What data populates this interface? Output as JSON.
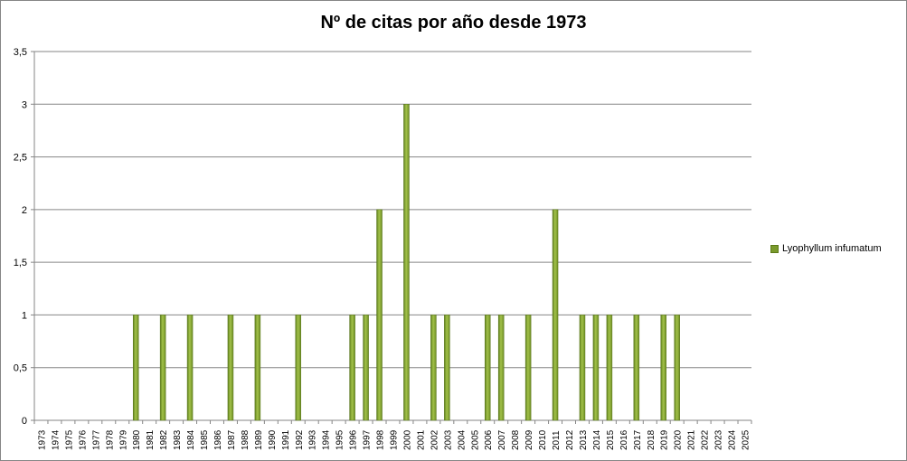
{
  "chart_data": {
    "type": "bar",
    "title": "Nº de citas por año desde 1973",
    "xlabel": "",
    "ylabel": "",
    "ylim": [
      0,
      3.5
    ],
    "yticks": [
      "0",
      "0,5",
      "1",
      "1,5",
      "2",
      "2,5",
      "3",
      "3,5"
    ],
    "grid": true,
    "legend_position": "right",
    "categories": [
      "1973",
      "1974",
      "1975",
      "1976",
      "1977",
      "1978",
      "1979",
      "1980",
      "1981",
      "1982",
      "1983",
      "1984",
      "1985",
      "1986",
      "1987",
      "1988",
      "1989",
      "1990",
      "1991",
      "1992",
      "1993",
      "1994",
      "1995",
      "1996",
      "1997",
      "1998",
      "1999",
      "2000",
      "2001",
      "2002",
      "2003",
      "2004",
      "2005",
      "2006",
      "2007",
      "2008",
      "2009",
      "2010",
      "2011",
      "2012",
      "2013",
      "2014",
      "2015",
      "2016",
      "2017",
      "2018",
      "2019",
      "2020",
      "2021",
      "2022",
      "2023",
      "2024",
      "2025"
    ],
    "series": [
      {
        "name": "Lyophyllum infumatum",
        "color": "#7a9a2c",
        "values": [
          0,
          0,
          0,
          0,
          0,
          0,
          0,
          1,
          0,
          1,
          0,
          1,
          0,
          0,
          1,
          0,
          1,
          0,
          0,
          1,
          0,
          0,
          0,
          1,
          1,
          2,
          0,
          3,
          0,
          1,
          1,
          0,
          0,
          1,
          1,
          0,
          1,
          0,
          2,
          0,
          1,
          1,
          1,
          0,
          1,
          0,
          1,
          1,
          0,
          0,
          0,
          0,
          0
        ]
      }
    ]
  }
}
